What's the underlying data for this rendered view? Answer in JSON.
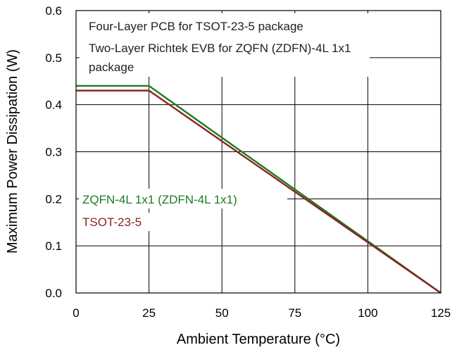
{
  "chart_data": {
    "type": "line",
    "xlabel": "Ambient Temperature (°C)",
    "ylabel": "Maximum Power Dissipation (W)",
    "xlim": [
      0,
      125
    ],
    "ylim": [
      0,
      0.6
    ],
    "x_ticks": [
      0,
      25,
      50,
      75,
      100,
      125
    ],
    "y_ticks": [
      0.0,
      0.1,
      0.2,
      0.3,
      0.4,
      0.5,
      0.6
    ],
    "x_tick_labels": [
      "0",
      "25",
      "50",
      "75",
      "100",
      "125"
    ],
    "y_tick_labels": [
      "0.0",
      "0.1",
      "0.2",
      "0.3",
      "0.4",
      "0.5",
      "0.6"
    ],
    "grid": true,
    "annotations": [
      "Four-Layer PCB for TSOT-23-5 package",
      "Two-Layer Richtek EVB for ZQFN (ZDFN)-4L 1x1",
      "package"
    ],
    "series": [
      {
        "name": "ZQFN-4L 1x1 (ZDFN-4L 1x1)",
        "color": "#1e7b1e",
        "x": [
          0,
          25,
          125
        ],
        "y": [
          0.44,
          0.44,
          0
        ]
      },
      {
        "name": "TSOT-23-5",
        "color": "#8b2323",
        "x": [
          0,
          25,
          125
        ],
        "y": [
          0.43,
          0.43,
          0
        ]
      }
    ]
  }
}
